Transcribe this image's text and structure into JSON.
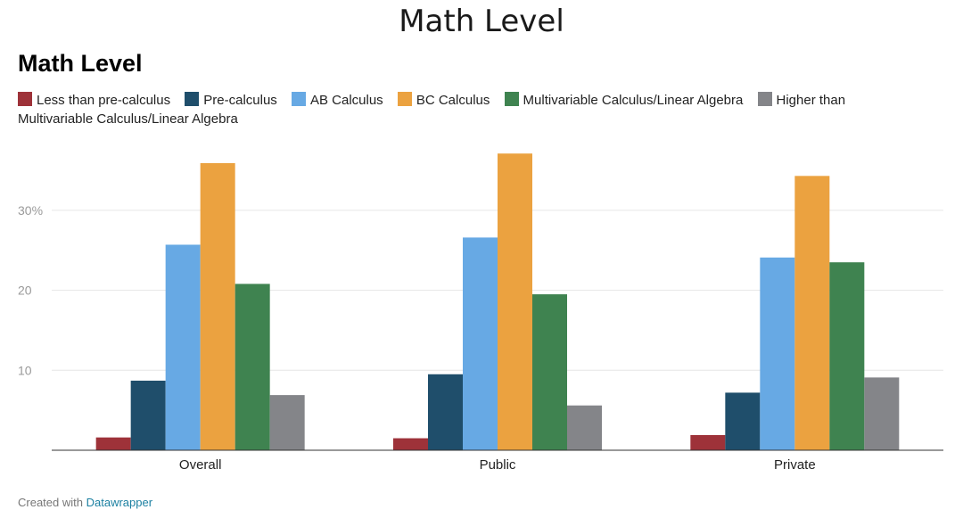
{
  "page": {
    "title": "Math Level",
    "footer_prefix": "Created with",
    "footer_link": "Datawrapper"
  },
  "chart_data": {
    "type": "bar",
    "title": "Math Level",
    "xlabel": "",
    "ylabel": "",
    "categories": [
      "Overall",
      "Public",
      "Private"
    ],
    "y_ticks": [
      {
        "value": 10,
        "label": "10"
      },
      {
        "value": 20,
        "label": "20"
      },
      {
        "value": 30,
        "label": "30%"
      }
    ],
    "ylim": [
      0,
      38
    ],
    "grid": true,
    "legend_position": "top-left",
    "series": [
      {
        "name": "Less than pre-calculus",
        "color": "#9e3239",
        "values": [
          1.6,
          1.5,
          1.9
        ]
      },
      {
        "name": "Pre-calculus",
        "color": "#1f4e6b",
        "values": [
          8.7,
          9.5,
          7.2
        ]
      },
      {
        "name": "AB Calculus",
        "color": "#67a9e4",
        "values": [
          25.7,
          26.6,
          24.1
        ]
      },
      {
        "name": "BC Calculus",
        "color": "#eba240",
        "values": [
          35.9,
          37.1,
          34.3
        ]
      },
      {
        "name": "Multivariable Calculus/Linear Algebra",
        "color": "#3f8350",
        "values": [
          20.8,
          19.5,
          23.5
        ]
      },
      {
        "name": "Higher than Multivariable Calculus/Linear Algebra",
        "color": "#848589",
        "values": [
          6.9,
          5.6,
          9.1
        ]
      }
    ]
  }
}
